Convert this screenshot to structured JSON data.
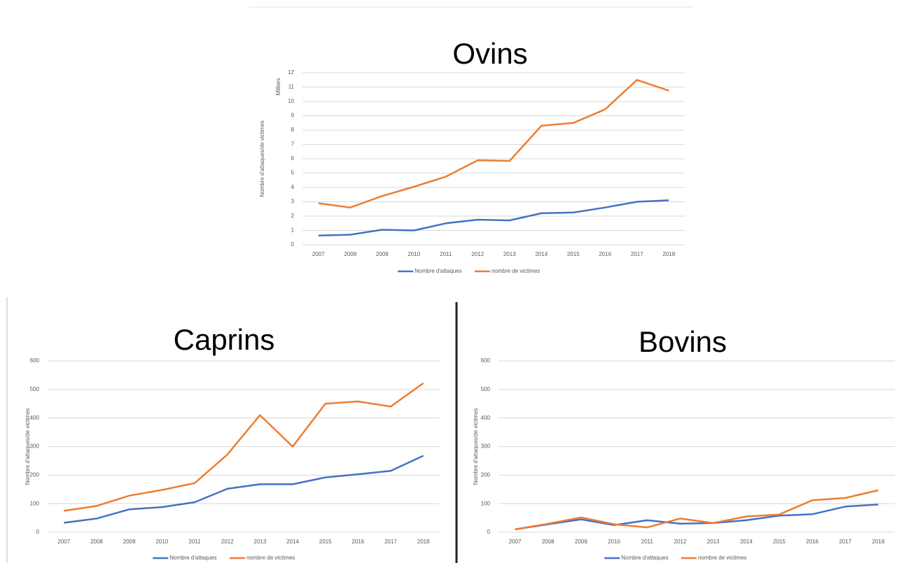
{
  "chart_data": [
    {
      "type": "line",
      "title": "Ovins",
      "y_label": "Nombre d'attaques/de victimes",
      "y_unit": "Milliers",
      "categories": [
        "2007",
        "2008",
        "2009",
        "2010",
        "2011",
        "2012",
        "2013",
        "2014",
        "2015",
        "2016",
        "2017",
        "2018"
      ],
      "series": [
        {
          "name": "Nombre d'attaques",
          "color": "#4472c4",
          "values": [
            0.65,
            0.7,
            1.05,
            1.0,
            1.5,
            1.75,
            1.7,
            2.2,
            2.25,
            2.6,
            3.0,
            3.1
          ]
        },
        {
          "name": "nombre de victimes",
          "color": "#ed7d31",
          "values": [
            2.9,
            2.6,
            3.4,
            4.05,
            4.75,
            5.9,
            5.85,
            8.3,
            8.5,
            9.45,
            11.5,
            10.75
          ]
        }
      ],
      "ylim": [
        0,
        12
      ],
      "yticks": [
        0,
        1,
        2,
        3,
        4,
        5,
        6,
        7,
        8,
        9,
        10,
        11,
        12
      ],
      "grid": true,
      "legend": "bottom"
    },
    {
      "type": "line",
      "title": "Caprins",
      "y_label": "Nombre d'attaques/de victimes",
      "categories": [
        "2007",
        "2008",
        "2009",
        "2010",
        "2011",
        "2012",
        "2013",
        "2014",
        "2015",
        "2016",
        "2017",
        "2018"
      ],
      "series": [
        {
          "name": "Nombre d'attaques",
          "color": "#4472c4",
          "values": [
            33,
            48,
            80,
            88,
            105,
            152,
            168,
            168,
            192,
            203,
            215,
            268
          ]
        },
        {
          "name": "nombre de victimes",
          "color": "#ed7d31",
          "values": [
            75,
            92,
            128,
            148,
            172,
            272,
            410,
            300,
            450,
            458,
            440,
            522
          ]
        }
      ],
      "ylim": [
        0,
        600
      ],
      "yticks": [
        0,
        100,
        200,
        300,
        400,
        500,
        600
      ],
      "grid": true,
      "legend": "bottom"
    },
    {
      "type": "line",
      "title": "Bovins",
      "y_label": "Nombre d'attaques/de victimes",
      "categories": [
        "2007",
        "2008",
        "2009",
        "2010",
        "2011",
        "2012",
        "2013",
        "2014",
        "2015",
        "2016",
        "2017",
        "2018"
      ],
      "series": [
        {
          "name": "Nombre d'attaques",
          "color": "#4472c4",
          "values": [
            10,
            28,
            45,
            25,
            42,
            30,
            32,
            42,
            58,
            63,
            90,
            97
          ]
        },
        {
          "name": "nombre de victimes",
          "color": "#ed7d31",
          "values": [
            10,
            30,
            52,
            28,
            17,
            48,
            32,
            55,
            62,
            112,
            120,
            147
          ]
        }
      ],
      "ylim": [
        0,
        600
      ],
      "yticks": [
        0,
        100,
        200,
        300,
        400,
        500,
        600
      ],
      "grid": true,
      "legend": "bottom"
    }
  ]
}
